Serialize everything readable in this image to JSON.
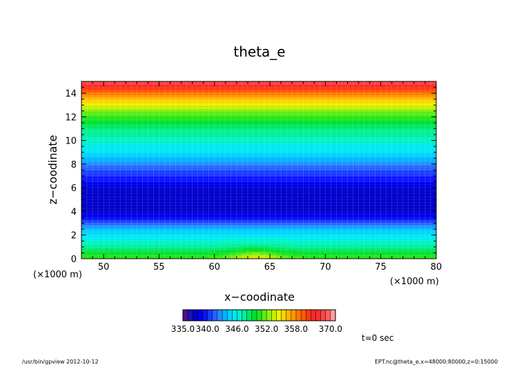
{
  "chart_data": {
    "type": "heatmap",
    "title": "theta_e",
    "xlabel": "x−coodinate",
    "ylabel": "z−coodinate",
    "x_unit": "(×1000 m)",
    "y_unit": "(×1000 m)",
    "xlim": [
      48,
      80
    ],
    "ylim": [
      0,
      15
    ],
    "x_ticks": [
      "50",
      "55",
      "60",
      "65",
      "70",
      "75",
      "80"
    ],
    "y_ticks": [
      "0",
      "2",
      "4",
      "6",
      "8",
      "10",
      "12",
      "14"
    ],
    "x_tick_values": [
      50,
      55,
      60,
      65,
      70,
      75,
      80
    ],
    "y_tick_values": [
      0,
      2,
      4,
      6,
      8,
      10,
      12,
      14
    ],
    "profile": [
      {
        "z": 0.0,
        "theta_e": 351.5
      },
      {
        "z": 1.0,
        "theta_e": 347.5
      },
      {
        "z": 2.5,
        "theta_e": 344.0
      },
      {
        "z": 3.5,
        "theta_e": 339.0
      },
      {
        "z": 4.5,
        "theta_e": 337.0
      },
      {
        "z": 6.0,
        "theta_e": 338.0
      },
      {
        "z": 7.5,
        "theta_e": 341.0
      },
      {
        "z": 9.0,
        "theta_e": 345.0
      },
      {
        "z": 11.0,
        "theta_e": 348.0
      },
      {
        "z": 12.5,
        "theta_e": 352.0
      },
      {
        "z": 13.5,
        "theta_e": 356.0
      },
      {
        "z": 14.5,
        "theta_e": 361.0
      },
      {
        "z": 15.0,
        "theta_e": 364.0
      }
    ],
    "perturbation": {
      "x_center": 63.7,
      "z_center": 0.0,
      "amplitude": 3.0,
      "x_width": 2.3,
      "z_width": 0.9
    },
    "colorbar": {
      "levels": [
        335,
        336,
        337,
        338,
        339,
        340,
        341,
        342,
        343,
        344,
        345,
        346,
        347,
        348,
        349,
        350,
        351,
        352,
        353,
        354,
        355,
        356,
        357,
        358,
        359,
        360,
        361,
        362,
        363,
        364,
        370
      ],
      "colors": [
        "#4a0f8a",
        "#1f10b4",
        "#0000cd",
        "#0000e6",
        "#0a14ff",
        "#1a3cff",
        "#2264ff",
        "#2a88ff",
        "#00b4ff",
        "#00d2ff",
        "#00e8f0",
        "#00f2c8",
        "#00f096",
        "#00e860",
        "#00e030",
        "#1ee61e",
        "#5aec14",
        "#96f00a",
        "#c8f000",
        "#f0f000",
        "#ffd200",
        "#ffb400",
        "#ff9600",
        "#ff7800",
        "#ff5a00",
        "#ff3c14",
        "#ff2a2a",
        "#ff3030",
        "#ff4646",
        "#ff6060",
        "#ffa0a0"
      ],
      "labels": [
        "335.0",
        "340.0",
        "346.0",
        "352.0",
        "358.0",
        "370.0"
      ],
      "label_values": [
        335,
        340,
        346,
        352,
        358,
        370
      ]
    },
    "annotation": "t=0 sec",
    "footer_left": "/usr/bin/gpview  2012-10-12",
    "footer_right": "EPT.nc@theta_e,x=48000:80000,z=0:15000"
  }
}
